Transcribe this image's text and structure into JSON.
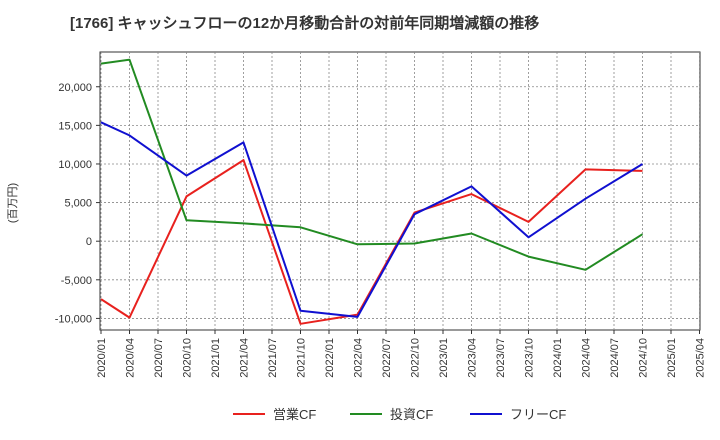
{
  "chart_data": {
    "type": "line",
    "title": "[1766]  キャッシュフローの12か月移動合計の対前年同期増減額の推移",
    "ylabel": "(百万円)",
    "xlabel": "",
    "ylim": [
      -11500,
      24500
    ],
    "yticks": [
      -10000,
      -5000,
      0,
      5000,
      10000,
      15000,
      20000
    ],
    "ytick_labels": [
      "-10,000",
      "-5,000",
      "0",
      "5,000",
      "10,000",
      "15,000",
      "20,000"
    ],
    "categories": [
      "2020/01",
      "2020/04",
      "2020/07",
      "2020/10",
      "2021/01",
      "2021/04",
      "2021/07",
      "2021/10",
      "2022/01",
      "2022/04",
      "2022/07",
      "2022/10",
      "2023/01",
      "2023/04",
      "2023/07",
      "2023/10",
      "2024/01",
      "2024/04",
      "2024/07",
      "2024/10",
      "2025/01",
      "2025/04"
    ],
    "series": [
      {
        "name": "営業CF",
        "color": "#e8211e",
        "points": [
          [
            "2020/01",
            -7500
          ],
          [
            "2020/04",
            -9900
          ],
          [
            "2020/10",
            5800
          ],
          [
            "2021/04",
            10500
          ],
          [
            "2021/10",
            -10700
          ],
          [
            "2022/04",
            -9500
          ],
          [
            "2022/10",
            3700
          ],
          [
            "2023/04",
            6100
          ],
          [
            "2023/10",
            2500
          ],
          [
            "2024/04",
            9300
          ],
          [
            "2024/10",
            9100
          ]
        ]
      },
      {
        "name": "投資CF",
        "color": "#228b22",
        "points": [
          [
            "2020/01",
            23000
          ],
          [
            "2020/04",
            23500
          ],
          [
            "2020/10",
            2700
          ],
          [
            "2021/04",
            2300
          ],
          [
            "2021/10",
            1800
          ],
          [
            "2022/04",
            -400
          ],
          [
            "2022/10",
            -300
          ],
          [
            "2023/04",
            1000
          ],
          [
            "2023/10",
            -2000
          ],
          [
            "2024/04",
            -3700
          ],
          [
            "2024/10",
            900
          ]
        ]
      },
      {
        "name": "フリーCF",
        "color": "#1010d0",
        "points": [
          [
            "2020/01",
            15400
          ],
          [
            "2020/04",
            13700
          ],
          [
            "2020/10",
            8500
          ],
          [
            "2021/04",
            12800
          ],
          [
            "2021/10",
            -9000
          ],
          [
            "2022/04",
            -9800
          ],
          [
            "2022/10",
            3500
          ],
          [
            "2023/04",
            7100
          ],
          [
            "2023/10",
            500
          ],
          [
            "2024/04",
            5500
          ],
          [
            "2024/10",
            10000
          ]
        ]
      }
    ],
    "grid": true,
    "legend": "bottom-center"
  }
}
